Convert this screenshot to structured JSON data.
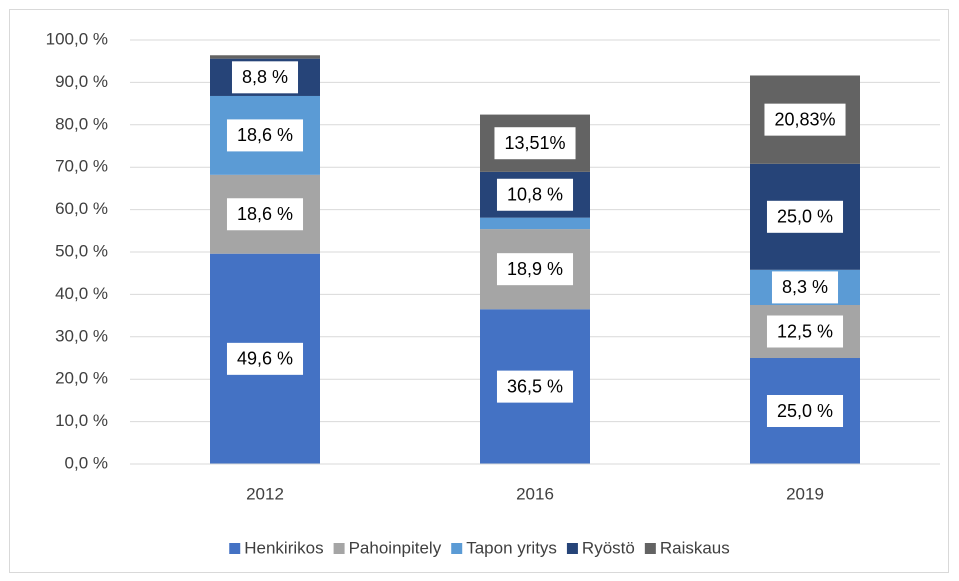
{
  "chart_data": {
    "type": "stacked_bar",
    "categories": [
      "2012",
      "2016",
      "2019"
    ],
    "series": [
      {
        "name": "Henkirikos",
        "color": "#4472c4",
        "values": [
          49.6,
          36.5,
          25.0
        ],
        "value_labels": [
          "49,6 %",
          "36,5 %",
          "25,0 %"
        ]
      },
      {
        "name": "Pahoinpitely",
        "color": "#a5a5a5",
        "values": [
          18.6,
          18.9,
          12.5
        ],
        "value_labels": [
          "18,6 %",
          "18,9 %",
          "12,5 %"
        ]
      },
      {
        "name": "Tapon yritys",
        "color": "#5b9bd5",
        "values": [
          18.6,
          2.7,
          8.3
        ],
        "value_labels": [
          "18,6 %",
          null,
          "8,3 %"
        ]
      },
      {
        "name": "Ryöstö",
        "color": "#264478",
        "values": [
          8.8,
          10.8,
          25.0
        ],
        "value_labels": [
          "8,8 %",
          "10,8 %",
          "25,0 %"
        ]
      },
      {
        "name": "Raiskaus",
        "color": "#636363",
        "values": [
          0.8,
          13.51,
          20.83
        ],
        "value_labels": [
          null,
          "13,51%",
          "20,83%"
        ]
      }
    ],
    "ylim": [
      0,
      100
    ],
    "yticks": [
      {
        "value": 0,
        "label": "0,0 %"
      },
      {
        "value": 10,
        "label": "10,0 %"
      },
      {
        "value": 20,
        "label": "20,0 %"
      },
      {
        "value": 30,
        "label": "30,0 %"
      },
      {
        "value": 40,
        "label": "40,0 %"
      },
      {
        "value": 50,
        "label": "50,0 %"
      },
      {
        "value": 60,
        "label": "60,0 %"
      },
      {
        "value": 70,
        "label": "70,0 %"
      },
      {
        "value": 80,
        "label": "80,0 %"
      },
      {
        "value": 90,
        "label": "90,0 %"
      },
      {
        "value": 100,
        "label": "100,0 %"
      }
    ],
    "grid": true,
    "legend": "bottom"
  }
}
